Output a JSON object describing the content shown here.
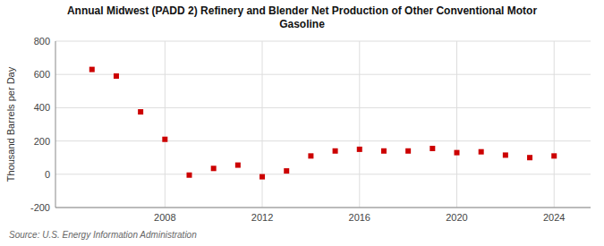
{
  "chart_data": {
    "type": "scatter",
    "title": "Annual Midwest (PADD 2) Refinery and Blender Net Production of Other Conventional Motor\nGasoline",
    "y_label": "Thousand Barrels per Day",
    "source": "Source: U.S. Energy Information Administration",
    "x": [
      2005,
      2006,
      2007,
      2008,
      2009,
      2010,
      2011,
      2012,
      2013,
      2014,
      2015,
      2016,
      2017,
      2018,
      2019,
      2020,
      2021,
      2022,
      2023,
      2024
    ],
    "values": [
      630,
      590,
      375,
      210,
      -5,
      35,
      55,
      -15,
      20,
      110,
      140,
      150,
      140,
      140,
      155,
      130,
      135,
      115,
      100,
      110
    ],
    "color": "#cc0000",
    "marker": "square",
    "xlim": [
      2003.5,
      2025.5
    ],
    "xticks": [
      2008,
      2012,
      2016,
      2020,
      2024
    ],
    "ylim": [
      -200,
      800
    ],
    "yticks": [
      -200,
      0,
      200,
      400,
      600,
      800
    ],
    "grid": true
  }
}
